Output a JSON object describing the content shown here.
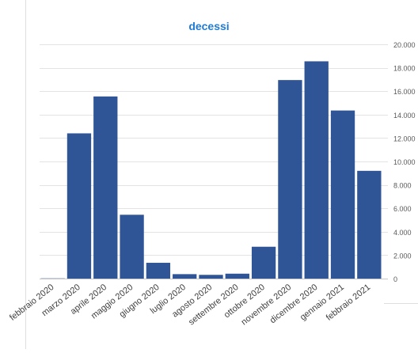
{
  "chart_data": {
    "type": "bar",
    "title": "decessi",
    "categories": [
      "febbraio 2020",
      "marzo 2020",
      "aprile 2020",
      "maggio 2020",
      "giugno 2020",
      "luglio 2020",
      "agosto 2020",
      "settembre 2020",
      "ottobre 2020",
      "novembre 2020",
      "dicembre 2020",
      "gennaio 2021",
      "febbraio 2021"
    ],
    "values": [
      20,
      12400,
      15550,
      5450,
      1350,
      380,
      320,
      420,
      2720,
      16950,
      18550,
      14350,
      9200
    ],
    "ylim": [
      0,
      20000
    ],
    "yticks": [
      0,
      2000,
      4000,
      6000,
      8000,
      10000,
      12000,
      14000,
      16000,
      18000,
      20000
    ],
    "ytick_labels": [
      "0",
      "2.000",
      "4.000",
      "6.000",
      "8.000",
      "10.000",
      "12.000",
      "14.000",
      "16.000",
      "18.000",
      "20.000"
    ],
    "y_axis_position": "right",
    "grid": true,
    "legend": "none",
    "bar_color": "#2f5597",
    "title_color": "#1f7bd6"
  }
}
